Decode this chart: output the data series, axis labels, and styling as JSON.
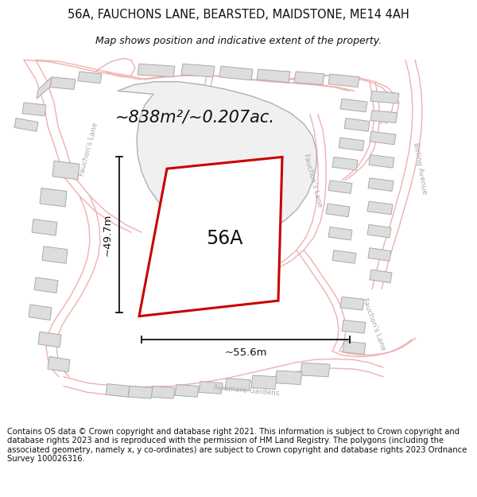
{
  "title": "56A, FAUCHONS LANE, BEARSTED, MAIDSTONE, ME14 4AH",
  "subtitle": "Map shows position and indicative extent of the property.",
  "footer": "Contains OS data © Crown copyright and database right 2021. This information is subject to Crown copyright and database rights 2023 and is reproduced with the permission of HM Land Registry. The polygons (including the associated geometry, namely x, y co-ordinates) are subject to Crown copyright and database rights 2023 Ordnance Survey 100026316.",
  "area_label": "~838m²/~0.207ac.",
  "label_56A": "56A",
  "dim_width": "~55.6m",
  "dim_height": "~49.7m",
  "map_bg": "#f7f7f7",
  "building_fill": "#dddddd",
  "building_edge": "#aaaaaa",
  "road_color": "#f0b0b0",
  "road_lw": 1.0,
  "plot_edge_color": "#cc0000",
  "plot_edge_lw": 2.2,
  "plot_fill": "#ffffff",
  "large_plot_edge": "#aaaaaa",
  "large_plot_fill": "#efefef",
  "dim_color": "#111111",
  "text_color": "#111111",
  "road_label_color": "#aaaaaa",
  "title_fs": 10.5,
  "subtitle_fs": 9,
  "footer_fs": 7.2,
  "area_fs": 15,
  "label_fs": 17,
  "dim_fs": 9.5,
  "road_lbl_fs": 6.5
}
